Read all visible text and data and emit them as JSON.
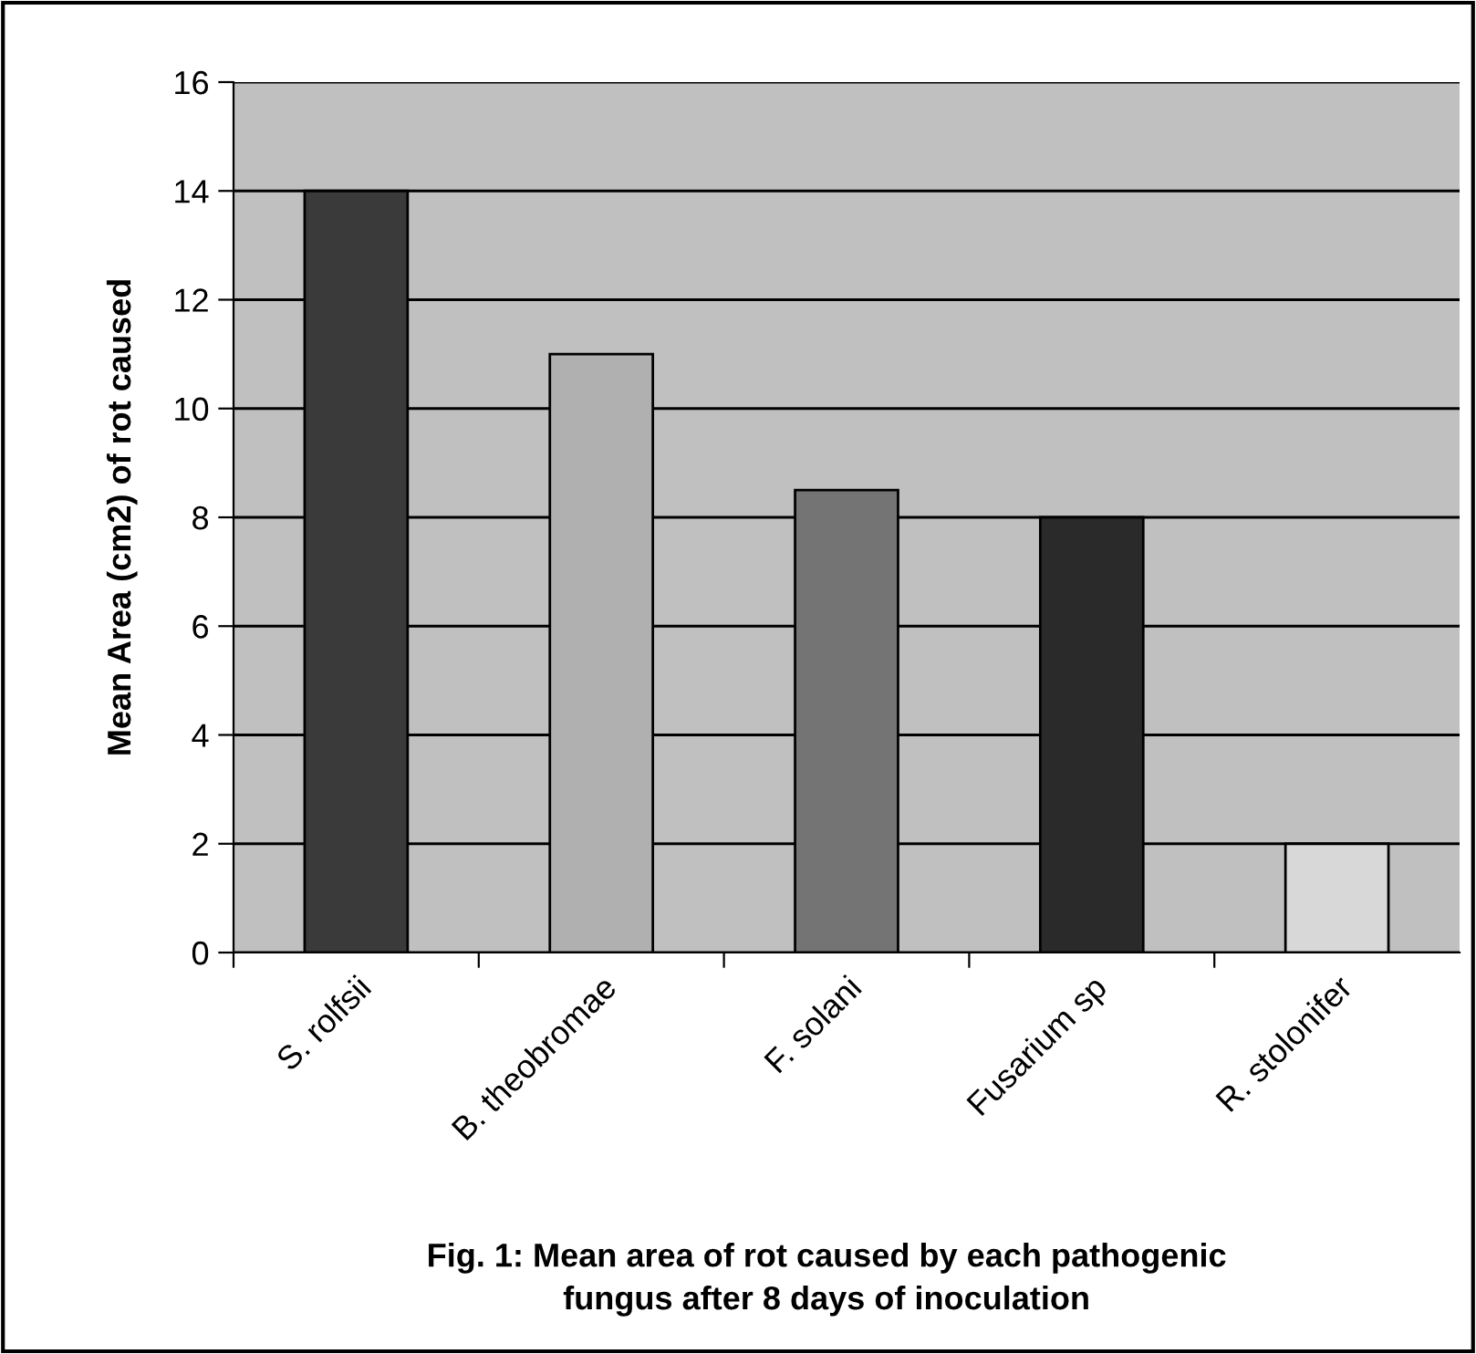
{
  "chart_data": {
    "type": "bar",
    "title": "Fig. 1: Mean area of rot caused by each pathogenic\nfungus after 8 days of inoculation",
    "ylabel": "Mean Area (cm2) of rot caused",
    "categories": [
      "S. rolfsii",
      "B. theobromae",
      "F. solani",
      "Fusarium sp",
      "R. stolonifer"
    ],
    "values": [
      14,
      11,
      8.5,
      8,
      2
    ],
    "colors": [
      "#3a3a3a",
      "#b0b0b0",
      "#747474",
      "#2a2a2a",
      "#d8d8d8"
    ],
    "ylim": [
      0,
      16
    ],
    "yticks": [
      0,
      2,
      4,
      6,
      8,
      10,
      12,
      14,
      16
    ],
    "grid": "y",
    "legend": false
  }
}
